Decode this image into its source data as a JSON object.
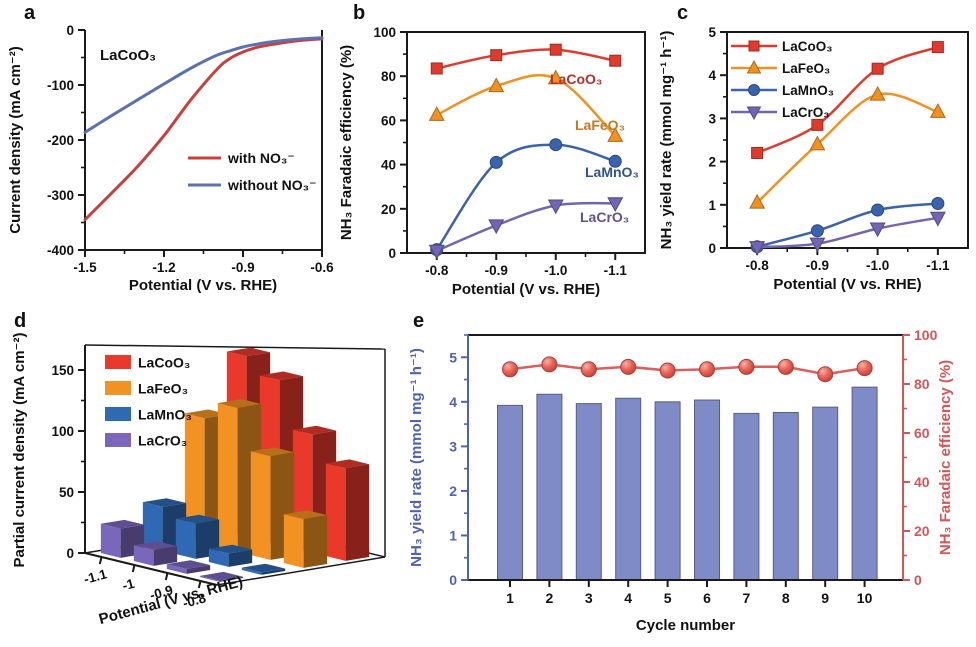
{
  "figure": {
    "panel_letters": [
      "a",
      "b",
      "c",
      "d",
      "e"
    ]
  },
  "chart_data": [
    {
      "id": "a",
      "type": "line",
      "title_inside": "LaCoO₃",
      "xlabel": "Potential (V vs. RHE)",
      "ylabel": "Current density (mA cm⁻²)",
      "xlim": [
        -1.5,
        -0.6
      ],
      "xticks": [
        -1.5,
        -1.2,
        -0.9,
        -0.6
      ],
      "ylim": [
        -400,
        0
      ],
      "yticks": [
        0,
        -100,
        -200,
        -300,
        -400
      ],
      "legend_position": "center-right",
      "series": [
        {
          "name": "with NO₃⁻",
          "color": "#c9403a",
          "x": [
            -1.5,
            -1.4,
            -1.3,
            -1.2,
            -1.1,
            -1.0,
            -0.95,
            -0.9,
            -0.85,
            -0.8,
            -0.7,
            -0.6
          ],
          "y": [
            -345,
            -297,
            -248,
            -192,
            -128,
            -72,
            -52,
            -40,
            -32,
            -27,
            -20,
            -16
          ]
        },
        {
          "name": "without NO₃⁻",
          "color": "#5a72b0",
          "x": [
            -1.5,
            -1.4,
            -1.3,
            -1.2,
            -1.1,
            -1.0,
            -0.95,
            -0.9,
            -0.85,
            -0.8,
            -0.7,
            -0.6
          ],
          "y": [
            -186,
            -156,
            -127,
            -98,
            -70,
            -46,
            -38,
            -31,
            -26,
            -22,
            -17,
            -14
          ]
        }
      ]
    },
    {
      "id": "b",
      "type": "line",
      "xlabel": "Potential (V vs. RHE)",
      "ylabel": "NH₃ Faradaic efficiency (%)",
      "categories": [
        "-0.8",
        "-0.9",
        "-1.0",
        "-1.1"
      ],
      "ylim": [
        0,
        100
      ],
      "yticks": [
        0,
        20,
        40,
        60,
        80,
        100
      ],
      "label_style": "inline",
      "series": [
        {
          "name": "LaCoO₃",
          "color": "#e03a2d",
          "marker": "square",
          "values": [
            83.5,
            89.5,
            92,
            87
          ]
        },
        {
          "name": "LaFeO₃",
          "color": "#f09122",
          "marker": "triangle-up",
          "values": [
            62.5,
            75.5,
            79,
            53
          ]
        },
        {
          "name": "LaMnO₃",
          "color": "#3a63ae",
          "marker": "circle",
          "values": [
            1.5,
            41,
            49,
            41.5
          ]
        },
        {
          "name": "LaCrO₃",
          "color": "#7165b4",
          "marker": "triangle-down",
          "values": [
            1,
            12.5,
            21.5,
            22.5
          ]
        }
      ]
    },
    {
      "id": "c",
      "type": "line",
      "xlabel": "Potential (V vs. RHE)",
      "ylabel": "NH₃ yield rate (mmol mg⁻¹ h⁻¹)",
      "categories": [
        "-0.8",
        "-0.9",
        "-1.0",
        "-1.1"
      ],
      "ylim": [
        0,
        5
      ],
      "yticks": [
        0,
        1,
        2,
        3,
        4,
        5
      ],
      "label_style": "legend-top-left",
      "series": [
        {
          "name": "LaCoO₃",
          "color": "#e03a2d",
          "marker": "square",
          "values": [
            2.2,
            2.85,
            4.15,
            4.65
          ]
        },
        {
          "name": "LaFeO₃",
          "color": "#f09122",
          "marker": "triangle-up",
          "values": [
            1.05,
            2.4,
            3.55,
            3.15
          ]
        },
        {
          "name": "LaMnO₃",
          "color": "#3a63ae",
          "marker": "circle",
          "values": [
            0.03,
            0.4,
            0.88,
            1.03
          ]
        },
        {
          "name": "LaCrO₃",
          "color": "#7165b4",
          "marker": "triangle-down",
          "values": [
            0.02,
            0.1,
            0.45,
            0.7
          ]
        }
      ]
    },
    {
      "id": "d",
      "type": "bar3d",
      "xlabel": "Potential (V vs. RHE)",
      "ylabel": "Partial current density (mA cm⁻²)",
      "categories": [
        "-1.1",
        "-1",
        "-0.9",
        "-0.8"
      ],
      "yticks": [
        0,
        50,
        100,
        150
      ],
      "series": [
        {
          "name": "LaCoO₃",
          "color": "#e8392b",
          "values": [
            148,
            135,
            97,
            76
          ]
        },
        {
          "name": "LaFeO₃",
          "color": "#f29222",
          "values": [
            103,
            118,
            85,
            40
          ]
        },
        {
          "name": "LaMnO₃",
          "color": "#2f69b3",
          "values": [
            36,
            29,
            11,
            2
          ]
        },
        {
          "name": "LaCrO₃",
          "color": "#7a67bc",
          "values": [
            24,
            13,
            4,
            1
          ]
        }
      ]
    },
    {
      "id": "e",
      "type": "bar-line-dual",
      "xlabel": "Cycle number",
      "ylabel_left": "NH₃ yield rate (mmol mg⁻¹ h⁻¹)",
      "ylabel_right": "NH₃ Faradaic efficiency (%)",
      "categories": [
        "1",
        "2",
        "3",
        "4",
        "5",
        "6",
        "7",
        "8",
        "9",
        "10"
      ],
      "ylim_left": [
        0,
        5.5
      ],
      "yticks_left": [
        0,
        1,
        2,
        3,
        4,
        5
      ],
      "ylim_right": [
        0,
        100
      ],
      "yticks_right": [
        0,
        20,
        40,
        60,
        80,
        100
      ],
      "axis_color_left": "#4f63b5",
      "axis_color_right": "#d65555",
      "bar_series": {
        "name": "NH₃ yield rate",
        "color": "#7e8bc7",
        "values": [
          3.92,
          4.17,
          3.96,
          4.08,
          4.0,
          4.04,
          3.74,
          3.76,
          3.88,
          4.33
        ]
      },
      "line_series": {
        "name": "NH₃ Faradaic efficiency",
        "color": "#d95f5c",
        "values": [
          86,
          88,
          86,
          87,
          85.5,
          86,
          87,
          87,
          84,
          86.5
        ]
      }
    }
  ]
}
